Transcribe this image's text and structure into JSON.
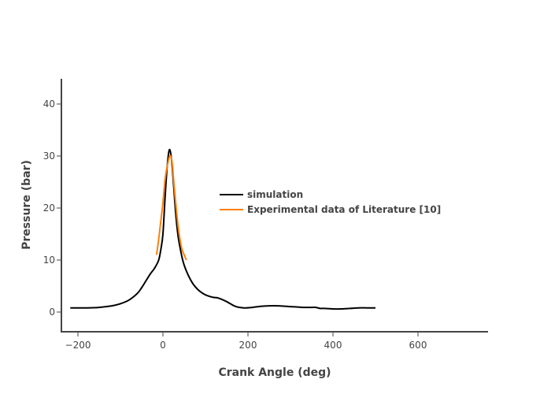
{
  "chart_data": {
    "type": "line",
    "title": "",
    "xlabel": "Crank Angle (deg)",
    "ylabel": "Pressure (bar)",
    "xlim": [
      -240,
      760
    ],
    "ylim": [
      -4,
      45
    ],
    "xticks": [
      -200,
      0,
      200,
      400,
      600
    ],
    "yticks": [
      0,
      10,
      20,
      30,
      40
    ],
    "xtick_labels": [
      "−200",
      "0",
      "200",
      "400",
      "600"
    ],
    "ytick_labels": [
      "0",
      "10",
      "20",
      "30",
      "40"
    ],
    "grid": false,
    "legend_position": "center-right",
    "series": [
      {
        "name": "simulation",
        "color": "#000000",
        "x": [
          -218,
          -180,
          -150,
          -120,
          -100,
          -80,
          -60,
          -50,
          -40,
          -30,
          -20,
          -10,
          -5,
          0,
          5,
          10,
          15,
          20,
          25,
          30,
          35,
          40,
          45,
          50,
          60,
          70,
          80,
          90,
          100,
          110,
          120,
          130,
          150,
          170,
          190,
          210,
          230,
          250,
          270,
          290,
          310,
          330,
          350,
          360,
          370,
          380,
          400,
          420,
          440,
          460,
          480,
          500
        ],
        "y": [
          0.8,
          0.8,
          0.9,
          1.2,
          1.6,
          2.3,
          3.6,
          4.7,
          6.0,
          7.3,
          8.4,
          10.0,
          12.0,
          15.0,
          22.0,
          28.0,
          31.2,
          29.5,
          24.5,
          19.0,
          15.0,
          12.5,
          10.5,
          9.0,
          7.0,
          5.5,
          4.5,
          3.8,
          3.3,
          3.0,
          2.8,
          2.7,
          2.0,
          1.1,
          0.8,
          0.9,
          1.1,
          1.2,
          1.2,
          1.1,
          1.0,
          0.9,
          0.9,
          0.9,
          0.7,
          0.7,
          0.6,
          0.6,
          0.7,
          0.8,
          0.8,
          0.8
        ]
      },
      {
        "name": "Experimental data of Literature [10]",
        "color": "#ff7f0e",
        "x": [
          -15,
          -10,
          -5,
          0,
          5,
          10,
          15,
          18,
          22,
          25,
          30,
          35,
          40,
          45,
          50,
          55
        ],
        "y": [
          11.0,
          14.0,
          17.5,
          21.0,
          25.5,
          28.0,
          29.8,
          30.0,
          28.5,
          25.5,
          21.0,
          17.0,
          14.0,
          12.0,
          11.0,
          10.0
        ]
      }
    ]
  }
}
